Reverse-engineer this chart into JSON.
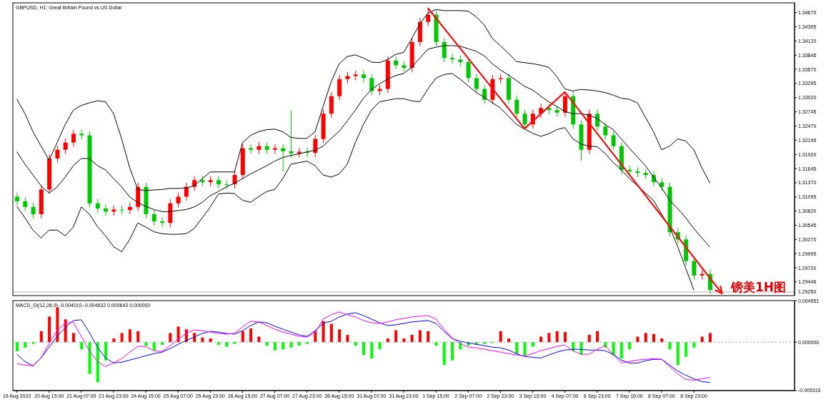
{
  "chart_data": [
    {
      "type": "candlestick",
      "title": "GBPUSD, H1: Great Britain Pound vs US Dollar",
      "tick_labels": "y",
      "categories": [
        null,
        null,
        null,
        null,
        null,
        null,
        null,
        null,
        null,
        null,
        null,
        null,
        null,
        null,
        null,
        null,
        null,
        null,
        null,
        null,
        null,
        null,
        null,
        null,
        null,
        null,
        null,
        null,
        null,
        null,
        null,
        null,
        null,
        null,
        null,
        null,
        null,
        null,
        null,
        null,
        null,
        null,
        null,
        null,
        null,
        null,
        null,
        null,
        null,
        null,
        null,
        null,
        null,
        null,
        null,
        null,
        null,
        null,
        null,
        null,
        null,
        null,
        null,
        null,
        null,
        null,
        null,
        null,
        null,
        null,
        null,
        null,
        null,
        null,
        null,
        null,
        null,
        null,
        null,
        null,
        null,
        null,
        null,
        null,
        null,
        null,
        null
      ],
      "ohlc": [
        [
          1.311,
          1.3118,
          1.3093,
          1.3101
        ],
        [
          1.3101,
          1.3109,
          1.3082,
          1.309
        ],
        [
          1.309,
          1.3098,
          1.3068,
          1.3076
        ],
        [
          1.3076,
          1.3132,
          1.3068,
          1.3124
        ],
        [
          1.3124,
          1.3192,
          1.3116,
          1.3184
        ],
        [
          1.3184,
          1.3209,
          1.3176,
          1.3201
        ],
        [
          1.3201,
          1.3223,
          1.3193,
          1.3215
        ],
        [
          1.3215,
          1.324,
          1.3207,
          1.3232
        ],
        [
          1.3232,
          1.324,
          1.3221,
          1.3229
        ],
        [
          1.3229,
          1.3237,
          1.3089,
          1.3097
        ],
        [
          1.3097,
          1.3105,
          1.3079,
          1.3087
        ],
        [
          1.3087,
          1.3095,
          1.3073,
          1.3081
        ],
        [
          1.3081,
          1.3093,
          1.3073,
          1.3085
        ],
        [
          1.3085,
          1.3093,
          1.3076,
          1.3084
        ],
        [
          1.3084,
          1.3098,
          1.3076,
          1.309
        ],
        [
          1.309,
          1.3137,
          1.3082,
          1.3129
        ],
        [
          1.3129,
          1.3137,
          1.3068,
          1.3076
        ],
        [
          1.3076,
          1.3084,
          1.3054,
          1.3062
        ],
        [
          1.3062,
          1.307,
          1.3051,
          1.3059
        ],
        [
          1.3059,
          1.3105,
          1.3051,
          1.3097
        ],
        [
          1.3097,
          1.3118,
          1.3089,
          1.311
        ],
        [
          1.311,
          1.3137,
          1.3102,
          1.3129
        ],
        [
          1.3129,
          1.315,
          1.3121,
          1.3142
        ],
        [
          1.3142,
          1.315,
          1.313,
          1.3138
        ],
        [
          1.3138,
          1.315,
          1.313,
          1.3142
        ],
        [
          1.3142,
          1.315,
          1.3126,
          1.3134
        ],
        [
          1.3134,
          1.3142,
          1.3126,
          1.3134
        ],
        [
          1.3134,
          1.316,
          1.3126,
          1.3152
        ],
        [
          1.3152,
          1.3212,
          1.3144,
          1.3204
        ],
        [
          1.3204,
          1.3212,
          1.3193,
          1.3201
        ],
        [
          1.3201,
          1.3216,
          1.3193,
          1.3208
        ],
        [
          1.3208,
          1.3216,
          1.3193,
          1.3201
        ],
        [
          1.3201,
          1.3212,
          1.3193,
          1.3204
        ],
        [
          1.3204,
          1.3212,
          1.3159,
          1.3198
        ],
        [
          1.3198,
          1.3278,
          1.3186,
          1.3194
        ],
        [
          1.3194,
          1.3205,
          1.3186,
          1.3197
        ],
        [
          1.3197,
          1.3205,
          1.3187,
          1.3195
        ],
        [
          1.3195,
          1.323,
          1.3187,
          1.3222
        ],
        [
          1.3222,
          1.3279,
          1.3214,
          1.3271
        ],
        [
          1.3271,
          1.3313,
          1.3263,
          1.3305
        ],
        [
          1.3305,
          1.3346,
          1.3297,
          1.3338
        ],
        [
          1.3338,
          1.3352,
          1.333,
          1.3344
        ],
        [
          1.3344,
          1.3355,
          1.3336,
          1.3347
        ],
        [
          1.3347,
          1.3355,
          1.3332,
          1.334
        ],
        [
          1.334,
          1.3348,
          1.3307,
          1.3315
        ],
        [
          1.3315,
          1.3327,
          1.3307,
          1.3319
        ],
        [
          1.3319,
          1.3382,
          1.3311,
          1.3374
        ],
        [
          1.3374,
          1.3382,
          1.3357,
          1.3365
        ],
        [
          1.3365,
          1.3373,
          1.3352,
          1.336
        ],
        [
          1.336,
          1.3418,
          1.3352,
          1.341
        ],
        [
          1.341,
          1.3457,
          1.3402,
          1.3449
        ],
        [
          1.3449,
          1.3476,
          1.3441,
          1.3463
        ],
        [
          1.3463,
          1.3471,
          1.3402,
          1.341
        ],
        [
          1.341,
          1.3418,
          1.3371,
          1.3379
        ],
        [
          1.3379,
          1.3387,
          1.3368,
          1.3376
        ],
        [
          1.3376,
          1.3384,
          1.3363,
          1.3371
        ],
        [
          1.3371,
          1.3379,
          1.3332,
          1.334
        ],
        [
          1.334,
          1.3348,
          1.3311,
          1.3319
        ],
        [
          1.3319,
          1.3327,
          1.329,
          1.3298
        ],
        [
          1.3298,
          1.3346,
          1.329,
          1.3338
        ],
        [
          1.3338,
          1.3348,
          1.333,
          1.334
        ],
        [
          1.334,
          1.3348,
          1.329,
          1.3298
        ],
        [
          1.3298,
          1.3306,
          1.3263,
          1.3271
        ],
        [
          1.3271,
          1.3279,
          1.3242,
          1.325
        ],
        [
          1.325,
          1.3279,
          1.3242,
          1.3271
        ],
        [
          1.3271,
          1.329,
          1.3263,
          1.3282
        ],
        [
          1.3282,
          1.329,
          1.327,
          1.3278
        ],
        [
          1.3278,
          1.3286,
          1.3265,
          1.3273
        ],
        [
          1.3273,
          1.3313,
          1.3265,
          1.3305
        ],
        [
          1.3305,
          1.3313,
          1.3242,
          1.325
        ],
        [
          1.325,
          1.3258,
          1.318,
          1.3201
        ],
        [
          1.3201,
          1.3279,
          1.3193,
          1.3271
        ],
        [
          1.3271,
          1.3279,
          1.3238,
          1.3246
        ],
        [
          1.3246,
          1.3254,
          1.3221,
          1.3229
        ],
        [
          1.3229,
          1.3237,
          1.32,
          1.3208
        ],
        [
          1.3208,
          1.3216,
          1.3154,
          1.3162
        ],
        [
          1.3162,
          1.317,
          1.3151,
          1.3159
        ],
        [
          1.3159,
          1.3167,
          1.3148,
          1.3156
        ],
        [
          1.3156,
          1.3164,
          1.3144,
          1.3152
        ],
        [
          1.3152,
          1.316,
          1.313,
          1.3138
        ],
        [
          1.3138,
          1.3146,
          1.3121,
          1.3129
        ],
        [
          1.3129,
          1.3137,
          1.3033,
          1.3041
        ],
        [
          1.3041,
          1.3049,
          1.3019,
          1.3027
        ],
        [
          1.3027,
          1.3035,
          1.2977,
          1.2985
        ],
        [
          1.2985,
          1.2993,
          1.2949,
          1.2957
        ],
        [
          1.2957,
          1.2968,
          1.2949,
          1.296
        ],
        [
          1.296,
          1.2968,
          1.2921,
          1.2929
        ]
      ],
      "colors": [
        "#00c800",
        "#00c800",
        "#00c800",
        "#ff0000",
        "#ff0000",
        "#ff0000",
        "#ff0000",
        "#ff0000",
        "#00c800",
        "#00c800",
        "#00c800",
        "#00c800",
        "#ff0000",
        "#00c800",
        "#ff0000",
        "#ff0000",
        "#00c800",
        "#00c800",
        "#00c800",
        "#ff0000",
        "#ff0000",
        "#ff0000",
        "#ff0000",
        "#00c800",
        "#ff0000",
        "#00c800",
        "#00c800",
        "#ff0000",
        "#ff0000",
        "#00c800",
        "#ff0000",
        "#00c800",
        "#ff0000",
        "#00c800",
        "#00c800",
        "#ff0000",
        "#00c800",
        "#ff0000",
        "#ff0000",
        "#ff0000",
        "#ff0000",
        "#ff0000",
        "#ff0000",
        "#00c800",
        "#00c800",
        "#ff0000",
        "#ff0000",
        "#00c800",
        "#00c800",
        "#ff0000",
        "#ff0000",
        "#ff0000",
        "#00c800",
        "#00c800",
        "#00c800",
        "#00c800",
        "#00c800",
        "#00c800",
        "#00c800",
        "#ff0000",
        "#ff0000",
        "#00c800",
        "#00c800",
        "#00c800",
        "#ff0000",
        "#ff0000",
        "#00c800",
        "#00c800",
        "#ff0000",
        "#00c800",
        "#00c800",
        "#ff0000",
        "#00c800",
        "#00c800",
        "#00c800",
        "#00c800",
        "#00c800",
        "#00c800",
        "#00c800",
        "#00c800",
        "#00c800",
        "#00c800",
        "#00c800",
        "#00c800",
        "#00c800",
        "#ff0000",
        "#00c800"
      ],
      "series": [
        {
          "type": "line",
          "color": "#000000",
          "values": [
            1.3299,
            1.3271,
            1.3236,
            1.3208,
            1.3181,
            1.3215,
            1.325,
            1.3278,
            1.3287,
            1.3292,
            1.3296,
            1.3294,
            1.3271,
            1.3222,
            1.3166,
            1.3124,
            1.3122,
            1.3123,
            1.3124,
            1.3126,
            1.3126,
            1.3127,
            1.3131,
            1.3145,
            1.3158,
            1.3158,
            1.3158,
            1.3158,
            1.3215,
            1.3229,
            1.3236,
            1.324,
            1.3241,
            1.3236,
            1.3225,
            1.3223,
            1.3223,
            1.3236,
            1.3285,
            1.3333,
            1.3368,
            1.3382,
            1.3385,
            1.3379,
            1.3371,
            1.337,
            1.3376,
            1.3386,
            1.339,
            1.3417,
            1.3445,
            1.3466,
            1.3473,
            1.3471,
            1.3471,
            1.3471,
            1.347,
            1.3459,
            1.3443,
            1.3417,
            1.3403,
            1.3388,
            1.3372,
            1.337,
            1.3368,
            1.3365,
            1.3361,
            1.3343,
            1.3319,
            1.3315,
            1.3318,
            1.3317,
            1.3315,
            1.3312,
            1.3307,
            1.3301,
            1.3299,
            1.3292,
            1.3264,
            1.3236,
            1.3201,
            1.3208,
            1.3222,
            1.3218,
            1.3201,
            1.3166,
            1.3136
          ]
        },
        {
          "type": "line",
          "color": "#000000",
          "values": [
            1.3197,
            1.3173,
            1.3152,
            1.3131,
            1.3117,
            1.3129,
            1.3148,
            1.317,
            1.3184,
            1.3184,
            1.317,
            1.3162,
            1.3145,
            1.3129,
            1.3109,
            1.3099,
            1.3091,
            1.3085,
            1.3081,
            1.3081,
            1.3083,
            1.3085,
            1.309,
            1.3099,
            1.3112,
            1.312,
            1.3129,
            1.3136,
            1.3145,
            1.3154,
            1.3162,
            1.317,
            1.3179,
            1.3186,
            1.319,
            1.3193,
            1.3197,
            1.32,
            1.3208,
            1.3223,
            1.3237,
            1.3257,
            1.3278,
            1.3301,
            1.3318,
            1.3329,
            1.3338,
            1.3345,
            1.3349,
            1.3361,
            1.3379,
            1.3396,
            1.34,
            1.3403,
            1.3403,
            1.3402,
            1.3397,
            1.3392,
            1.3383,
            1.3368,
            1.3356,
            1.3346,
            1.3335,
            1.3324,
            1.3317,
            1.3305,
            1.3294,
            1.3285,
            1.3275,
            1.3271,
            1.3271,
            1.3268,
            1.3262,
            1.325,
            1.324,
            1.3222,
            1.3204,
            1.3187,
            1.317,
            1.3148,
            1.3127,
            1.3103,
            1.3087,
            1.3069,
            1.3048,
            1.303,
            1.3012
          ]
        },
        {
          "type": "line",
          "color": "#000000",
          "values": [
            1.3091,
            1.3069,
            1.3045,
            1.303,
            1.3045,
            1.3045,
            1.3034,
            1.3051,
            1.309,
            1.3076,
            1.3052,
            1.3034,
            1.3013,
            1.3003,
            1.3027,
            1.3059,
            1.3051,
            1.3042,
            1.3038,
            1.3037,
            1.3037,
            1.3038,
            1.3048,
            1.3069,
            1.309,
            1.3115,
            1.3117,
            1.3116,
            1.3103,
            1.3099,
            1.311,
            1.312,
            1.3124,
            1.3145,
            1.3173,
            1.3176,
            1.3179,
            1.317,
            1.3152,
            1.3148,
            1.3154,
            1.3173,
            1.3215,
            1.325,
            1.3278,
            1.3294,
            1.3297,
            1.33,
            1.33,
            1.3296,
            1.3294,
            1.3319,
            1.334,
            1.3347,
            1.3349,
            1.3338,
            1.3325,
            1.3312,
            1.3303,
            1.3292,
            1.3282,
            1.3266,
            1.325,
            1.3241,
            1.3233,
            1.3227,
            1.3232,
            1.324,
            1.3244,
            1.3222,
            1.3212,
            1.3208,
            1.3207,
            1.3194,
            1.3176,
            1.3162,
            1.3145,
            1.3131,
            1.3117,
            1.3103,
            1.3076,
            1.3051,
            1.3013,
            1.2971,
            1.2929,
            null,
            null
          ]
        }
      ],
      "ylim": [
        1.2918,
        1.3486
      ],
      "yticks": [
        {
          "value": 1.3467,
          "label": "1.34670"
        },
        {
          "value": 1.34395,
          "label": "1.34395"
        },
        {
          "value": 1.3412,
          "label": "1.34120"
        },
        {
          "value": 1.33845,
          "label": "1.33845"
        },
        {
          "value": 1.3357,
          "label": "1.33570"
        },
        {
          "value": 1.33295,
          "label": "1.33295"
        },
        {
          "value": 1.3302,
          "label": "1.33020"
        },
        {
          "value": 1.32745,
          "label": "1.32745"
        },
        {
          "value": 1.3247,
          "label": "1.32470"
        },
        {
          "value": 1.32195,
          "label": "1.32195"
        },
        {
          "value": 1.3192,
          "label": "1.31920"
        },
        {
          "value": 1.31645,
          "label": "1.31645"
        },
        {
          "value": 1.3137,
          "label": "1.31370"
        },
        {
          "value": 1.31095,
          "label": "1.31095"
        },
        {
          "value": 1.3082,
          "label": "1.30820"
        },
        {
          "value": 1.30545,
          "label": "1.30545"
        },
        {
          "value": 1.3027,
          "label": "1.30270"
        },
        {
          "value": 1.29995,
          "label": "1.29995"
        },
        {
          "value": 1.2972,
          "label": "1.29720"
        },
        {
          "value": 1.29446,
          "label": "1.29446"
        }
      ],
      "ref_lines": [
        {
          "axis": "y",
          "value": 1.2925,
          "label": "1.29250",
          "color": "#b0b0b0"
        }
      ],
      "annotations": [
        "镑美1H图"
      ]
    },
    {
      "type": "bar",
      "title": "MACD_Di(12,26,9) -0.004010 -0.004632 0.000643 0.000000",
      "categories": [
        "19 Aug 2020",
        null,
        null,
        null,
        "20 Aug 15:00",
        null,
        null,
        null,
        "21 Aug 07:00",
        null,
        null,
        null,
        "21 Aug 23:00",
        null,
        null,
        null,
        "24 Aug 15:00",
        null,
        null,
        null,
        "25 Aug 07:00",
        null,
        null,
        null,
        "25 Aug 23:00",
        null,
        null,
        null,
        "26 Aug 15:00",
        null,
        null,
        null,
        "27 Aug 07:00",
        null,
        null,
        null,
        "27 Aug 23:00",
        null,
        null,
        null,
        "28 Aug 15:00",
        null,
        null,
        null,
        "31 Aug 07:00",
        null,
        null,
        null,
        "31 Aug 23:00",
        null,
        null,
        null,
        "1 Sep 15:00",
        null,
        null,
        null,
        "2 Sep 07:00",
        null,
        null,
        null,
        "2 Sep 23:00",
        null,
        null,
        null,
        "3 Sep 15:00",
        null,
        null,
        null,
        "4 Sep 07:00",
        null,
        null,
        null,
        "6 Sep 23:00",
        null,
        null,
        null,
        "7 Sep 15:00",
        null,
        null,
        null,
        "8 Sep 07:00",
        null,
        null,
        null,
        "8 Sep 23:00",
        null,
        null
      ],
      "series": [
        {
          "values": [
            -0.001,
            -0.0006,
            -0.0002,
            0.0012,
            0.0028,
            0.0038,
            0.0025,
            0.001,
            -0.0008,
            -0.0035,
            -0.0044,
            -0.002,
            0.0004,
            0.001,
            0.0014,
            0.0012,
            -0.0004,
            -0.0009,
            -0.0003,
            0.001,
            0.0017,
            0.0014,
            0.001,
            0.0005,
            0.0004,
            -0.0003,
            -0.0005,
            -0.0002,
            0.0012,
            0.0015,
            0.0006,
            -0.0004,
            -0.0009,
            -0.0008,
            -0.0006,
            -0.0004,
            -0.0002,
            0.0012,
            0.0023,
            0.002,
            0.0014,
            0.0008,
            -0.0004,
            -0.0014,
            -0.0018,
            -0.0008,
            0.0004,
            0.0013,
            0.0004,
            0.0008,
            0.0013,
            0.0012,
            -0.0004,
            -0.0025,
            -0.002,
            -0.0008,
            -0.0004,
            -0.0003,
            -0.0002,
            -0.0001,
            0.0012,
            0.0004,
            -0.0013,
            -0.0015,
            -0.0005,
            0.0006,
            0.001,
            0.0012,
            0.0011,
            -0.001,
            -0.0014,
            0.0008,
            0.0012,
            -0.0006,
            -0.0015,
            -0.0018,
            -0.0008,
            0.0006,
            0.001,
            0.0009,
            0.0004,
            -0.0008,
            -0.0025,
            -0.0016,
            -0.0006,
            0.0006,
            0.001
          ],
          "colors": [
            "#00ff00",
            "#00ff00",
            "#00ff00",
            "#ff0000",
            "#ff0000",
            "#ff0000",
            "#ff0000",
            "#ff0000",
            "#00ff00",
            "#00ff00",
            "#00ff00",
            "#00ff00",
            "#ff0000",
            "#ff0000",
            "#ff0000",
            "#ff0000",
            "#00ff00",
            "#00ff00",
            "#00ff00",
            "#ff0000",
            "#ff0000",
            "#ff0000",
            "#ff0000",
            "#ff0000",
            "#ff0000",
            "#00ff00",
            "#00ff00",
            "#00ff00",
            "#ff0000",
            "#ff0000",
            "#ff0000",
            "#00ff00",
            "#00ff00",
            "#00ff00",
            "#00ff00",
            "#00ff00",
            "#00ff00",
            "#ff0000",
            "#ff0000",
            "#ff0000",
            "#ff0000",
            "#ff0000",
            "#00ff00",
            "#00ff00",
            "#00ff00",
            "#00ff00",
            "#ff0000",
            "#ff0000",
            "#ff0000",
            "#ff0000",
            "#ff0000",
            "#ff0000",
            "#00ff00",
            "#00ff00",
            "#00ff00",
            "#00ff00",
            "#00ff00",
            "#00ff00",
            "#00ff00",
            "#00ff00",
            "#ff0000",
            "#ff0000",
            "#00ff00",
            "#00ff00",
            "#00ff00",
            "#ff0000",
            "#ff0000",
            "#ff0000",
            "#ff0000",
            "#00ff00",
            "#00ff00",
            "#ff0000",
            "#ff0000",
            "#00ff00",
            "#00ff00",
            "#00ff00",
            "#00ff00",
            "#ff0000",
            "#ff0000",
            "#ff0000",
            "#ff0000",
            "#00ff00",
            "#00ff00",
            "#00ff00",
            "#00ff00",
            "#ff0000",
            "#ff0000"
          ]
        },
        {
          "type": "line",
          "color": "#0000ff",
          "values": [
            -0.00134,
            -0.00213,
            -0.0026,
            -0.00174,
            -0.00055,
            0.00063,
            0.00158,
            0.00237,
            0.00245,
            0.00103,
            -0.00055,
            -0.00174,
            -0.00229,
            -0.00221,
            -0.00197,
            -0.00174,
            -0.0015,
            -0.00126,
            -0.0011,
            -0.00071,
            -0.00024,
            0.00016,
            0.00055,
            0.00095,
            0.00118,
            0.0011,
            0.00095,
            0.00087,
            0.00126,
            0.00181,
            0.00221,
            0.00213,
            0.00174,
            0.00142,
            0.0011,
            0.00079,
            0.00063,
            0.00126,
            0.00205,
            0.00229,
            0.00276,
            0.00308,
            0.00323,
            0.00292,
            0.00252,
            0.00213,
            0.00181,
            0.00189,
            0.00205,
            0.00221,
            0.00229,
            0.00237,
            0.00205,
            0.00118,
            0.00039,
            0.0001,
            -0.0001,
            -0.00024,
            -0.00039,
            -0.00055,
            -0.00063,
            -0.00087,
            -0.00126,
            -0.00158,
            -0.00166,
            -0.00174,
            -0.00142,
            -0.0011,
            -0.00087,
            -0.00079,
            -0.00079,
            -0.00087,
            -0.00087,
            -0.00095,
            -0.00134,
            -0.00197,
            -0.00229,
            -0.00229,
            -0.00205,
            -0.00189,
            -0.00189,
            -0.00252,
            -0.00316,
            -0.00363,
            -0.00402,
            -0.00434,
            -0.00442
          ]
        },
        {
          "type": "line",
          "color": "#ff00ff",
          "values": [
            -0.00237,
            -0.00252,
            -0.0026,
            -0.00174,
            -0.00016,
            0.00126,
            0.00205,
            0.00221,
            0.00063,
            -0.00095,
            -0.00213,
            -0.00268,
            -0.00229,
            -0.00181,
            -0.0011,
            -0.00047,
            -0.00047,
            -0.00095,
            -0.00103,
            -0.00039,
            0.00032,
            0.00095,
            0.00134,
            0.00126,
            0.0011,
            0.00095,
            0.00087,
            0.00095,
            0.00166,
            0.00229,
            0.00221,
            0.00181,
            0.00142,
            0.0011,
            0.00087,
            0.00063,
            0.00055,
            0.00103,
            0.00252,
            0.003,
            0.00331,
            0.003,
            0.00276,
            0.00237,
            0.00213,
            0.00205,
            0.00221,
            0.00245,
            0.0026,
            0.00276,
            0.00284,
            0.00292,
            0.00252,
            0.00142,
            0.00047,
            -0.00016,
            -0.00055,
            -0.00063,
            -0.00079,
            -0.00095,
            -0.0011,
            -0.00126,
            -0.00142,
            -0.0015,
            -0.00126,
            -0.00095,
            -0.00071,
            -0.00047,
            -0.00032,
            -0.00095,
            -0.00134,
            -0.00134,
            -0.00079,
            -0.00039,
            -0.00134,
            -0.00229,
            -0.00213,
            -0.00197,
            -0.00189,
            -0.00181,
            -0.00189,
            -0.00268,
            -0.00347,
            -0.0041,
            -0.00418,
            -0.00402,
            -0.00387
          ]
        }
      ],
      "ylim": [
        -0.005316,
        0.004551
      ],
      "yticks": [
        {
          "value": 0.004551,
          "label": "0.004551"
        },
        {
          "value": 0,
          "label": "0.000000"
        },
        {
          "value": -0.005316,
          "label": "-0.005316"
        }
      ],
      "ref_lines": [
        {
          "axis": "y",
          "value": 0,
          "color": "#a0a0a0",
          "line_style": "dotted"
        }
      ]
    }
  ]
}
